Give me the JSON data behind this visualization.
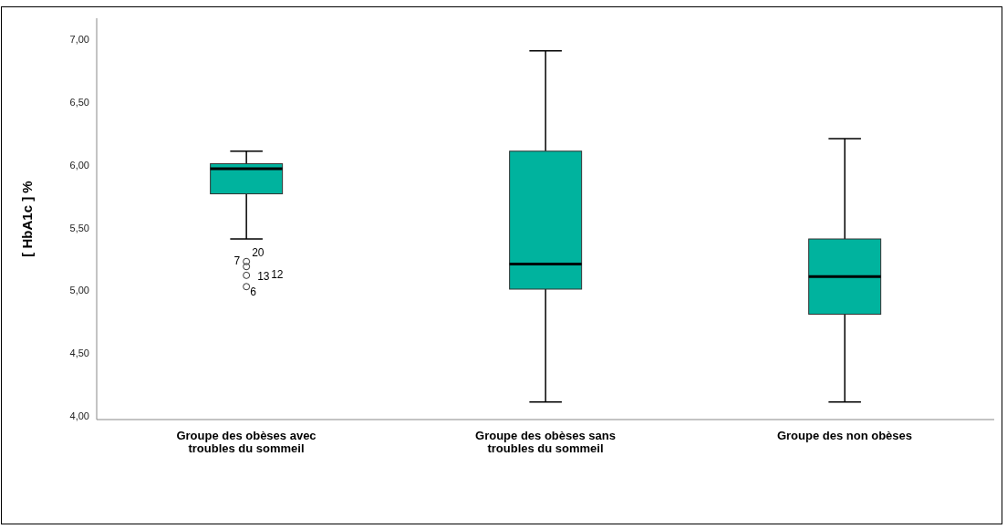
{
  "chart_data": {
    "type": "box",
    "ylabel": "[ HbA1c ] %",
    "categories": [
      "Groupe des obèses avec troubles du sommeil",
      "Groupe des obèses sans troubles du sommeil",
      "Groupe des non obèses"
    ],
    "color": "#00b39e",
    "boxes": [
      {
        "low": 5.41,
        "q1": 5.77,
        "median": 5.97,
        "q3": 6.01,
        "high": 6.11,
        "outliers": [
          5.19,
          5.23,
          5.12,
          5.03
        ]
      },
      {
        "low": 4.11,
        "q1": 5.01,
        "median": 5.21,
        "q3": 6.11,
        "high": 6.91
      },
      {
        "low": 4.11,
        "q1": 4.81,
        "median": 5.11,
        "q3": 5.41,
        "high": 6.21
      }
    ],
    "ylim": [
      3.97,
      7.17
    ],
    "yticks": [
      {
        "value": 4,
        "label": "4,00"
      },
      {
        "value": 4.5,
        "label": "4,50"
      },
      {
        "value": 5,
        "label": "5,00"
      },
      {
        "value": 5.5,
        "label": "5,50"
      },
      {
        "value": 6,
        "label": "6,00"
      },
      {
        "value": 6.5,
        "label": "6,50"
      },
      {
        "value": 7,
        "label": "7,00"
      }
    ],
    "annotations": [
      "7",
      "20",
      "13",
      "12",
      "6"
    ]
  }
}
